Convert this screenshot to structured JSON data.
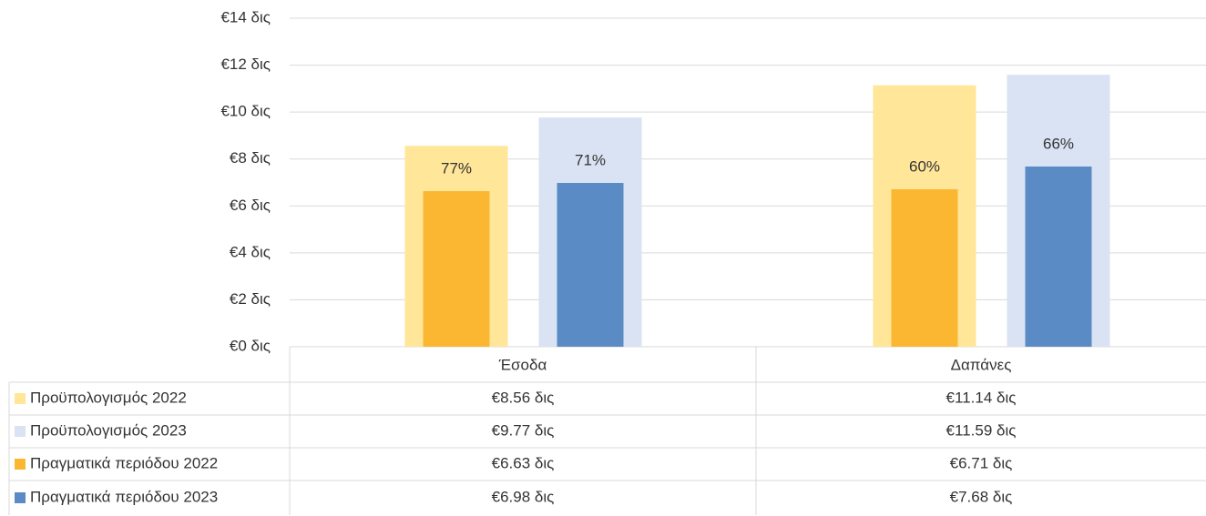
{
  "chart_data": {
    "type": "bar",
    "categories": [
      "Έσοδα",
      "Δαπάνες"
    ],
    "series": [
      {
        "name": "Προϋπολογισμός 2022",
        "color": "#ffe699",
        "values": [
          8.56,
          11.14
        ],
        "value_labels": [
          "€8.56 δις",
          "€11.14 δις"
        ]
      },
      {
        "name": "Προϋπολογισμός 2023",
        "color": "#dae3f3",
        "values": [
          9.77,
          11.59
        ],
        "value_labels": [
          "€9.77 δις",
          "€11.59 δις"
        ]
      },
      {
        "name": "Πραγματικά περιόδου 2022",
        "color": "#fbb731",
        "values": [
          6.63,
          6.71
        ],
        "value_labels": [
          "€6.63 δις",
          "€6.71 δις"
        ],
        "percent_labels": [
          "77%",
          "60%"
        ]
      },
      {
        "name": "Πραγματικά περιόδου 2023",
        "color": "#5b8bc4",
        "values": [
          6.98,
          7.68
        ],
        "value_labels": [
          "€6.98 δις",
          "€7.68 δις"
        ],
        "percent_labels": [
          "71%",
          "66%"
        ]
      }
    ],
    "ylim": [
      0,
      14
    ],
    "yticks": [
      {
        "value": 0,
        "label": "€0 δις"
      },
      {
        "value": 2,
        "label": "€2 δις"
      },
      {
        "value": 4,
        "label": "€4 δις"
      },
      {
        "value": 6,
        "label": "€6 δις"
      },
      {
        "value": 8,
        "label": "€8 δις"
      },
      {
        "value": 10,
        "label": "€10 δις"
      },
      {
        "value": 12,
        "label": "€12 δις"
      },
      {
        "value": 14,
        "label": "€14 δις"
      }
    ],
    "grid": true
  }
}
